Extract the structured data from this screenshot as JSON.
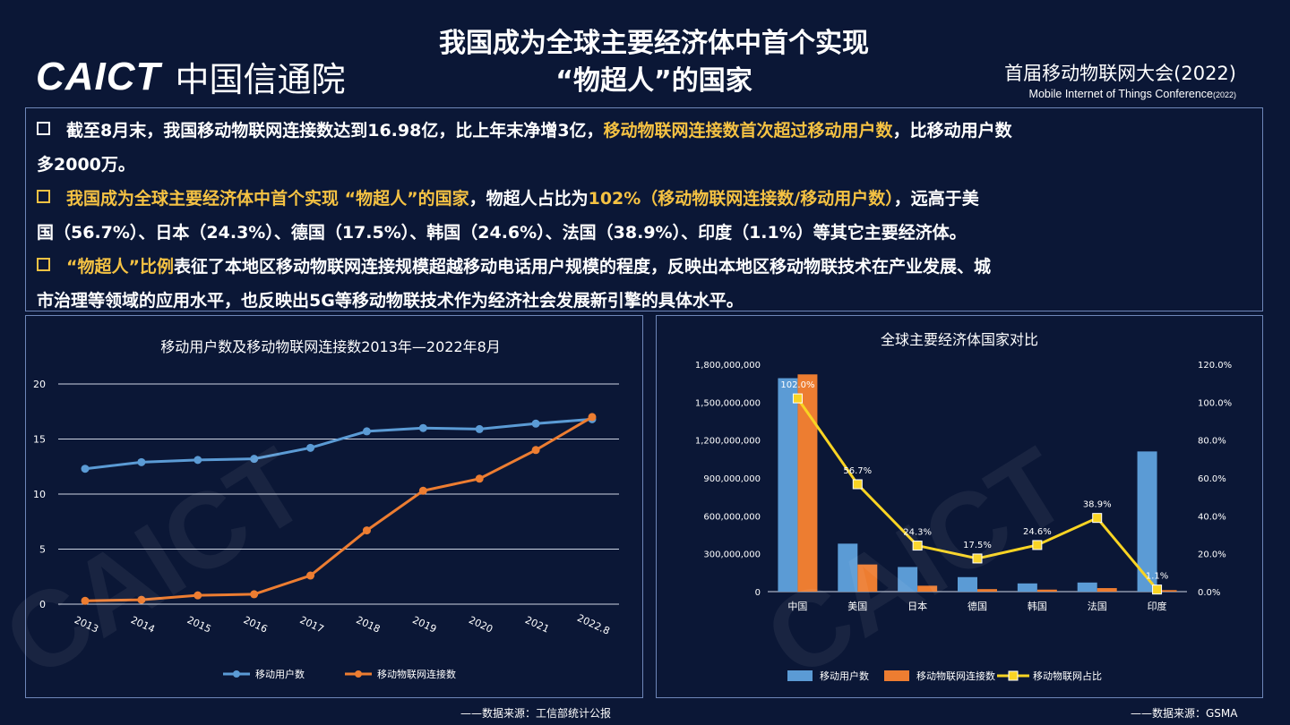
{
  "header": {
    "logo_en": "CAICT",
    "logo_cn": "中国信通院",
    "title_line1": "我国成为全球主要经济体中首个实现",
    "title_line2": "“物超人”的国家",
    "conference_cn": "首届移动物联网大会(2022)",
    "conference_en": "Mobile Internet of Things Conference",
    "conference_year": "(2022)"
  },
  "bullets": {
    "b1_a": "截至8月末，我国移动物联网连接数达到16.98亿，比上年末净增3亿，",
    "b1_hl": "移动物联网连接数首次超过移动用户数",
    "b1_b": "，比移动用户数",
    "b1_c": "多2000万。",
    "b2_hl1": "我国成为全球主要经济体中首个实现 “物超人”的国家",
    "b2_a": "，物超人占比为",
    "b2_hl2": "102%（移动物联网连接数/移动用户数）",
    "b2_b": "，远高于美",
    "b2_c": "国（56.7%）、日本（24.3%）、德国（17.5%）、韩国（24.6%）、法国（38.9%）、印度（1.1%）等其它主要经济体。",
    "b3_hl": "“物超人”比例",
    "b3_a": "表征了本地区移动物联网连接规模超越移动电话用户规模的程度，反映出本地区移动物联技术在产业发展、城",
    "b3_b": "市治理等领域的应用水平，也反映出5G等移动物联技术作为经济社会发展新引擎的具体水平。"
  },
  "sources": {
    "left": "——数据来源：工信部统计公报",
    "right": "——数据来源：GSMA"
  },
  "colors": {
    "blue": "#5b9bd5",
    "orange": "#ed7d31",
    "yellow": "#f5c243",
    "pct_line": "#f9d423"
  },
  "chart_data": [
    {
      "type": "line",
      "title": "移动用户数及移动物联网连接数2013年—2022年8月",
      "x": [
        "2013",
        "2014",
        "2015",
        "2016",
        "2017",
        "2018",
        "2019",
        "2020",
        "2021",
        "2022.8"
      ],
      "ylim": [
        0,
        20
      ],
      "yticks": [
        0,
        5,
        10,
        15,
        20
      ],
      "grid": true,
      "legend": "bottom",
      "series": [
        {
          "name": "移动用户数",
          "color": "#5b9bd5",
          "values": [
            12.3,
            12.9,
            13.1,
            13.2,
            14.2,
            15.7,
            16.0,
            15.9,
            16.4,
            16.8
          ]
        },
        {
          "name": "移动物联网连接数",
          "color": "#ed7d31",
          "values": [
            0.3,
            0.4,
            0.8,
            0.9,
            2.6,
            6.7,
            10.3,
            11.4,
            14.0,
            17.0
          ]
        }
      ]
    },
    {
      "type": "bar",
      "title": "全球主要经济体国家对比",
      "categories": [
        "中国",
        "美国",
        "日本",
        "德国",
        "韩国",
        "法国",
        "印度"
      ],
      "ylim": [
        0,
        1800000000
      ],
      "yticks": [
        "0",
        "300,000,000",
        "600,000,000",
        "900,000,000",
        "1,200,000,000",
        "1,500,000,000",
        "1,800,000,000"
      ],
      "y2lim": [
        0,
        120
      ],
      "y2ticks": [
        "0.0%",
        "20.0%",
        "40.0%",
        "60.0%",
        "80.0%",
        "100.0%",
        "120.0%"
      ],
      "legend": "bottom",
      "series": [
        {
          "name": "移动用户数",
          "color": "#5b9bd5",
          "values": [
            1690000000,
            380000000,
            195000000,
            115000000,
            65000000,
            72000000,
            1110000000
          ]
        },
        {
          "name": "移动物联网连接数",
          "color": "#ed7d31",
          "values": [
            1720000000,
            215000000,
            47000000,
            20000000,
            16000000,
            28000000,
            12000000
          ]
        },
        {
          "name": "移动物联网占比",
          "color": "#f9d423",
          "type": "line",
          "axis": "right",
          "values": [
            102.0,
            56.7,
            24.3,
            17.5,
            24.6,
            38.9,
            1.1
          ],
          "labels": [
            "102.0%",
            "56.7%",
            "24.3%",
            "17.5%",
            "24.6%",
            "38.9%",
            "1.1%"
          ]
        }
      ]
    }
  ]
}
